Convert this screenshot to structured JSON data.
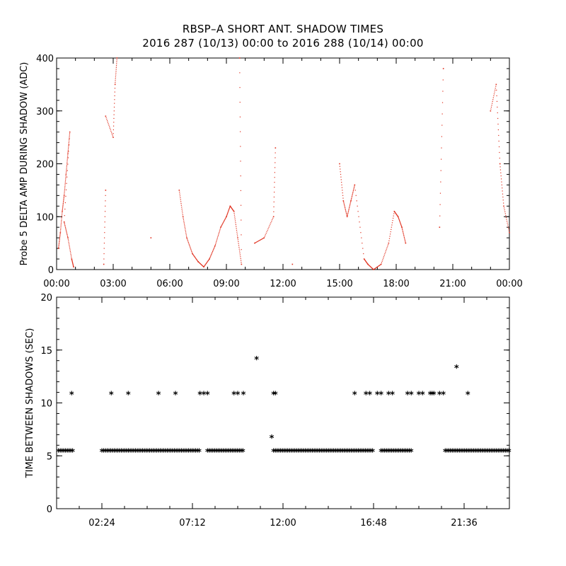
{
  "title": "RBSP–A SHORT ANT. SHADOW TIMES",
  "subtitle": "2016 287 (10/13) 00:00 to 2016 288 (10/14) 00:00",
  "chart_data": [
    {
      "type": "scatter",
      "ylabel": "Probe 5 DELTA AMP DURING SHADOW (ADC)",
      "xlabel": "",
      "xlim_hours": [
        0,
        24
      ],
      "ylim": [
        0,
        400
      ],
      "yticks": [
        "0",
        "100",
        "200",
        "300",
        "400"
      ],
      "xticks": [
        "00:00",
        "03:00",
        "06:00",
        "09:00",
        "12:00",
        "15:00",
        "18:00",
        "21:00",
        "00:00"
      ],
      "color": "#e0301e",
      "grid": false,
      "series": [
        {
          "points": [
            [
              0.1,
              40
            ],
            [
              0.2,
              70
            ],
            [
              0.3,
              110
            ],
            [
              0.4,
              140
            ],
            [
              0.5,
              180
            ],
            [
              0.6,
              220
            ],
            [
              0.7,
              260
            ],
            [
              0.4,
              90
            ],
            [
              0.6,
              60
            ],
            [
              0.8,
              20
            ],
            [
              0.9,
              5
            ]
          ]
        },
        {
          "points": [
            [
              2.5,
              10
            ],
            [
              2.6,
              150
            ],
            [
              2.6,
              290
            ],
            [
              3.0,
              250
            ],
            [
              3.1,
              350
            ],
            [
              3.2,
              400
            ]
          ]
        },
        {
          "points": [
            [
              5.0,
              60
            ],
            [
              6.5,
              150
            ],
            [
              6.7,
              100
            ],
            [
              6.9,
              60
            ],
            [
              7.2,
              30
            ],
            [
              7.5,
              15
            ],
            [
              7.8,
              5
            ],
            [
              8.1,
              20
            ],
            [
              8.4,
              45
            ],
            [
              8.7,
              80
            ],
            [
              9.0,
              100
            ],
            [
              9.2,
              120
            ],
            [
              9.4,
              110
            ],
            [
              9.6,
              60
            ],
            [
              9.8,
              10
            ],
            [
              9.7,
              400
            ]
          ]
        },
        {
          "points": [
            [
              10.5,
              50
            ],
            [
              11.0,
              60
            ],
            [
              11.5,
              100
            ],
            [
              11.6,
              230
            ],
            [
              12.5,
              10
            ]
          ]
        },
        {
          "points": [
            [
              15.0,
              200
            ],
            [
              15.2,
              130
            ],
            [
              15.4,
              100
            ],
            [
              15.6,
              130
            ],
            [
              15.8,
              160
            ],
            [
              16.3,
              20
            ],
            [
              16.5,
              10
            ],
            [
              16.8,
              0
            ],
            [
              17.2,
              10
            ],
            [
              17.6,
              50
            ],
            [
              17.9,
              110
            ],
            [
              18.1,
              100
            ],
            [
              18.3,
              80
            ],
            [
              18.5,
              50
            ],
            [
              20.3,
              80
            ],
            [
              20.5,
              380
            ]
          ]
        },
        {
          "points": [
            [
              23.0,
              300
            ],
            [
              23.3,
              350
            ],
            [
              23.5,
              200
            ],
            [
              23.7,
              120
            ],
            [
              24.0,
              70
            ]
          ]
        }
      ]
    },
    {
      "type": "scatter",
      "ylabel": "TIME BETWEEN SHADOWS (SEC)",
      "xlabel": "",
      "xlim_hours": [
        0,
        24
      ],
      "ylim": [
        0,
        20
      ],
      "yticks": [
        "0",
        "5",
        "10",
        "15",
        "20"
      ],
      "xticks": [
        "02:24",
        "07:12",
        "12:00",
        "16:48",
        "21:36"
      ],
      "marker": "*",
      "grid": false,
      "baseline_value": 5.4,
      "baseline_segments_hours": [
        [
          0.1,
          0.9
        ],
        [
          2.4,
          7.6
        ],
        [
          8.0,
          9.9
        ],
        [
          11.5,
          16.8
        ],
        [
          17.2,
          18.8
        ],
        [
          20.6,
          24.0
        ]
      ],
      "points": [
        [
          0.8,
          10.8
        ],
        [
          2.9,
          10.8
        ],
        [
          3.8,
          10.8
        ],
        [
          5.4,
          10.8
        ],
        [
          6.3,
          10.8
        ],
        [
          7.6,
          10.8
        ],
        [
          7.8,
          10.8
        ],
        [
          8.0,
          10.8
        ],
        [
          9.4,
          10.8
        ],
        [
          9.6,
          10.8
        ],
        [
          9.9,
          10.8
        ],
        [
          10.6,
          14.1
        ],
        [
          11.4,
          6.7
        ],
        [
          11.5,
          10.8
        ],
        [
          11.6,
          10.8
        ],
        [
          15.8,
          10.8
        ],
        [
          16.4,
          10.8
        ],
        [
          16.6,
          10.8
        ],
        [
          17.0,
          10.8
        ],
        [
          17.2,
          10.8
        ],
        [
          17.6,
          10.8
        ],
        [
          17.8,
          10.8
        ],
        [
          18.6,
          10.8
        ],
        [
          18.8,
          10.8
        ],
        [
          19.2,
          10.8
        ],
        [
          19.4,
          10.8
        ],
        [
          19.8,
          10.8
        ],
        [
          19.9,
          10.8
        ],
        [
          20.0,
          10.8
        ],
        [
          20.3,
          10.8
        ],
        [
          20.5,
          10.8
        ],
        [
          21.2,
          13.3
        ],
        [
          21.8,
          10.8
        ]
      ]
    }
  ]
}
